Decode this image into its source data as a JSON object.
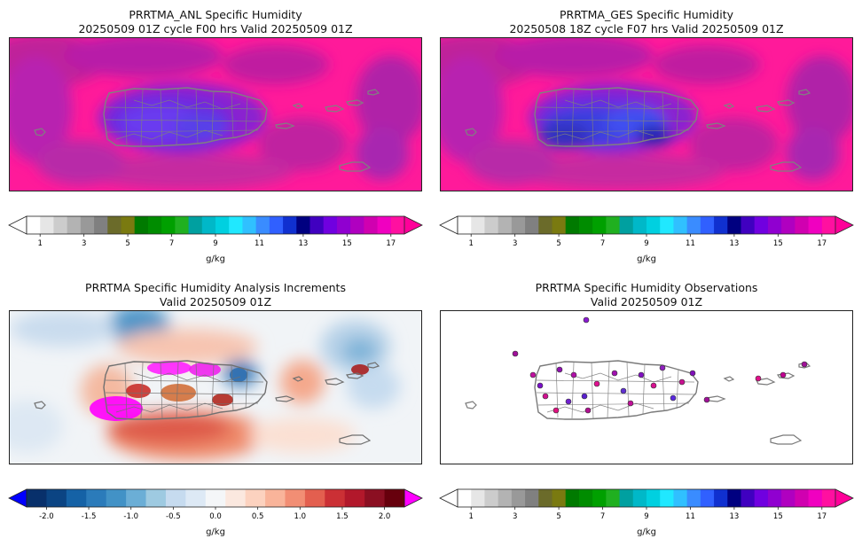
{
  "panels": [
    {
      "id": "anl",
      "title_line1": "PRRTMA_ANL Specific Humidity",
      "title_line2": "20250509 01Z cycle F00 hrs Valid 20250509 01Z",
      "field": "humidity",
      "colorbar": "humidity",
      "units": "g/kg"
    },
    {
      "id": "ges",
      "title_line1": "PRRTMA_GES Specific Humidity",
      "title_line2": "20250508 18Z cycle F07 hrs Valid 20250509 01Z",
      "field": "humidity",
      "colorbar": "humidity",
      "units": "g/kg"
    },
    {
      "id": "inc",
      "title_line1": "PRRTMA Specific Humidity Analysis Increments",
      "title_line2": "Valid 20250509 01Z",
      "field": "increments",
      "colorbar": "diverging",
      "units": "g/kg"
    },
    {
      "id": "obs",
      "title_line1": "PRRTMA Specific Humidity Observations",
      "title_line2": "Valid 20250509 01Z",
      "field": "observations",
      "colorbar": "humidity",
      "units": "g/kg"
    }
  ],
  "colorbars": {
    "humidity": {
      "ticks": [
        "1",
        "3",
        "5",
        "7",
        "9",
        "11",
        "13",
        "15",
        "17"
      ],
      "colors": [
        "#ffffff",
        "#e6e6e6",
        "#cccccc",
        "#b3b3b3",
        "#999999",
        "#808080",
        "#6b6b2a",
        "#7a7a10",
        "#007a00",
        "#008c00",
        "#00a000",
        "#20b020",
        "#00a0a0",
        "#00b8c8",
        "#00d0e0",
        "#20e8ff",
        "#30c0ff",
        "#3a8cff",
        "#3060ff",
        "#1030d0",
        "#000080",
        "#4000c0",
        "#7000e0",
        "#9000d0",
        "#b000c0",
        "#d000b0",
        "#f000c0",
        "#ff10a0"
      ],
      "under": "#ffffff",
      "over": "#ff0099"
    },
    "diverging": {
      "ticks": [
        "-2.0",
        "-1.5",
        "-1.0",
        "-0.5",
        "0.0",
        "0.5",
        "1.0",
        "1.5",
        "2.0"
      ],
      "colors": [
        "#08306b",
        "#0b4483",
        "#1562a6",
        "#2b7bba",
        "#4292c6",
        "#6baed6",
        "#9ecae1",
        "#c6dbef",
        "#dde9f5",
        "#f4f6f8",
        "#fbe8df",
        "#fcd2bf",
        "#f9b49a",
        "#f28e74",
        "#e35f4f",
        "#cb3035",
        "#b2182b",
        "#8b0f22",
        "#67000d"
      ],
      "under": "#0000ff",
      "over": "#ff00ff"
    }
  }
}
